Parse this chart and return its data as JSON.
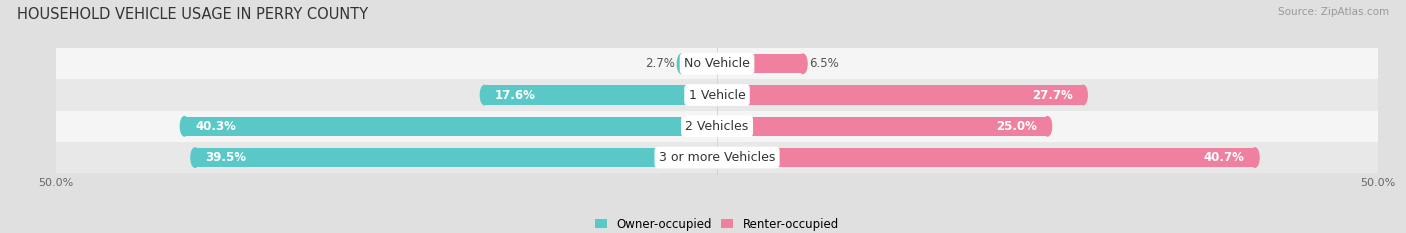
{
  "title": "HOUSEHOLD VEHICLE USAGE IN PERRY COUNTY",
  "source": "Source: ZipAtlas.com",
  "categories": [
    "No Vehicle",
    "1 Vehicle",
    "2 Vehicles",
    "3 or more Vehicles"
  ],
  "owner_values": [
    2.7,
    17.6,
    40.3,
    39.5
  ],
  "renter_values": [
    6.5,
    27.7,
    25.0,
    40.7
  ],
  "owner_color": "#5BC8C8",
  "renter_color": "#F080A0",
  "row_colors": [
    "#f5f5f5",
    "#e8e8e8"
  ],
  "background_color": "#e0e0e0",
  "xlim": 50.0,
  "legend_owner": "Owner-occupied",
  "legend_renter": "Renter-occupied",
  "title_fontsize": 10.5,
  "label_fontsize": 8.5,
  "cat_fontsize": 9,
  "axis_label_fontsize": 8,
  "bar_height": 0.62
}
